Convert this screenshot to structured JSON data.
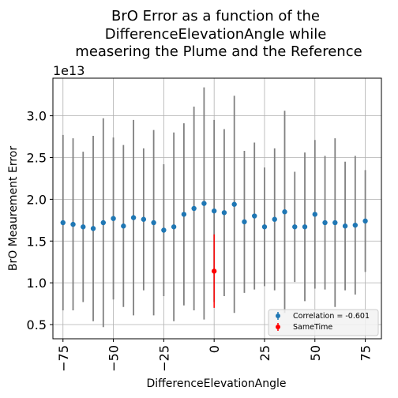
{
  "chart_data": {
    "type": "scatter",
    "title_lines": [
      "BrO Error as a function of the",
      "DifferenceElevationAngle while",
      "measering the Plume and the Reference"
    ],
    "xlabel": "DifferenceElevationAngle",
    "ylabel": "BrO Meaurement Error",
    "offset_text": "1e13",
    "xlim": [
      -80,
      83
    ],
    "ylim": [
      0.33,
      3.45
    ],
    "x_ticks": [
      -75,
      -50,
      -25,
      0,
      25,
      50,
      75
    ],
    "x_tick_labels": [
      "−75",
      "−50",
      "−25",
      "0",
      "25",
      "50",
      "75"
    ],
    "y_ticks": [
      0.5,
      1.0,
      1.5,
      2.0,
      2.5,
      3.0
    ],
    "y_tick_labels": [
      "0.5",
      "1.0",
      "1.5",
      "2.0",
      "2.5",
      "3.0"
    ],
    "grid": true,
    "legend_position": "lower-right",
    "colors": {
      "series1": "#1f77b4",
      "series2": "#ff0000",
      "errorbar": "#808080"
    },
    "series": [
      {
        "name": "Correlation = -0.601",
        "x": [
          -75,
          -70,
          -65,
          -60,
          -55,
          -50,
          -45,
          -40,
          -35,
          -30,
          -25,
          -20,
          -15,
          -10,
          -5,
          0,
          5,
          10,
          15,
          20,
          25,
          30,
          35,
          40,
          45,
          50,
          55,
          60,
          65,
          70,
          75
        ],
        "y": [
          1.72,
          1.7,
          1.67,
          1.65,
          1.72,
          1.77,
          1.68,
          1.78,
          1.76,
          1.72,
          1.63,
          1.67,
          1.82,
          1.89,
          1.95,
          1.86,
          1.84,
          1.94,
          1.73,
          1.8,
          1.67,
          1.76,
          1.85,
          1.67,
          1.67,
          1.82,
          1.72,
          1.72,
          1.68,
          1.69,
          1.74
        ],
        "err": [
          1.05,
          1.03,
          0.9,
          1.11,
          1.25,
          0.97,
          0.97,
          1.17,
          0.85,
          1.11,
          0.79,
          1.13,
          1.09,
          1.22,
          1.39,
          1.09,
          1.0,
          1.3,
          0.85,
          0.88,
          0.71,
          0.85,
          1.21,
          0.66,
          0.89,
          0.89,
          0.8,
          1.01,
          0.77,
          0.83,
          0.61
        ]
      },
      {
        "name": "SameTime",
        "x": [
          0
        ],
        "y": [
          1.14
        ],
        "err": [
          0.44
        ]
      }
    ]
  }
}
